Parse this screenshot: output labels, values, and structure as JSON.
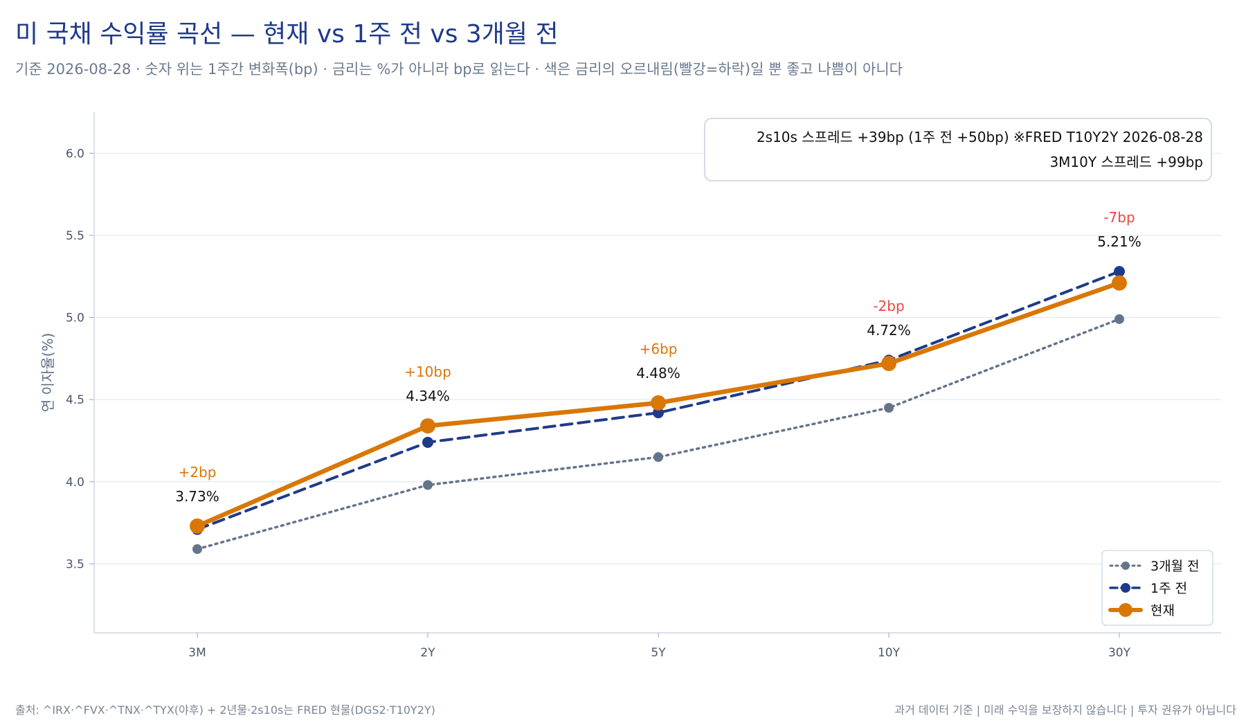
{
  "header": {
    "title": "미 국채 수익률 곡선 — 현재 vs 1주 전 vs 3개월 전",
    "subtitle": "기준 2026-08-28 · 숫자 위는 1주간 변화폭(bp) · 금리는 %가 아니라 bp로 읽는다 · 색은 금리의 오르내림(빨강=하락)일 뿐 좋고 나쁨이 아니다"
  },
  "footer": {
    "source": "출처: ^IRX·^FVX·^TNX·^TYX(야후) + 2년물·2s10s는 FRED 현물(DGS2·T10Y2Y)",
    "disclaimer": "과거 데이터 기준 | 미래 수익을 보장하지 않습니다 | 투자 권유가 아닙니다"
  },
  "colors": {
    "current": "#d97706",
    "week_ago": "#1e3a8a",
    "three_months_ago": "#64748b",
    "rise": "#d97706",
    "fall": "#ef4444",
    "grid": "#e2e8f0",
    "axis": "#cbd5e1"
  },
  "chart_data": {
    "type": "line",
    "title": "미 국채 수익률 곡선 — 현재 vs 1주 전 vs 3개월 전",
    "xlabel": "",
    "ylabel": "연 이자율(%)",
    "categories": [
      "3M",
      "2Y",
      "5Y",
      "10Y",
      "30Y"
    ],
    "ylim": [
      3.08,
      6.25
    ],
    "yticks": [
      "3.5",
      "4.0",
      "4.5",
      "5.0",
      "5.5",
      "6.0"
    ],
    "grid": true,
    "legend_position": "bottom-right",
    "series": [
      {
        "name": "3개월 전",
        "style": "dotted",
        "values": [
          3.59,
          3.98,
          4.15,
          4.45,
          4.99
        ]
      },
      {
        "name": "1주 전",
        "style": "dashed",
        "values": [
          3.71,
          4.24,
          4.42,
          4.74,
          5.28
        ]
      },
      {
        "name": "현재",
        "style": "solid",
        "values": [
          3.73,
          4.34,
          4.48,
          4.72,
          5.21
        ]
      }
    ],
    "value_labels": [
      "3.73%",
      "4.34%",
      "4.48%",
      "4.72%",
      "5.21%"
    ],
    "change_labels": [
      "+2bp",
      "+10bp",
      "+6bp",
      "-2bp",
      "-7bp"
    ],
    "change_direction": [
      "up",
      "up",
      "up",
      "down",
      "down"
    ],
    "annotation": {
      "line1": "2s10s 스프레드 +39bp (1주 전 +50bp)  ※FRED T10Y2Y 2026-08-28",
      "line2": "3M10Y 스프레드 +99bp"
    }
  }
}
